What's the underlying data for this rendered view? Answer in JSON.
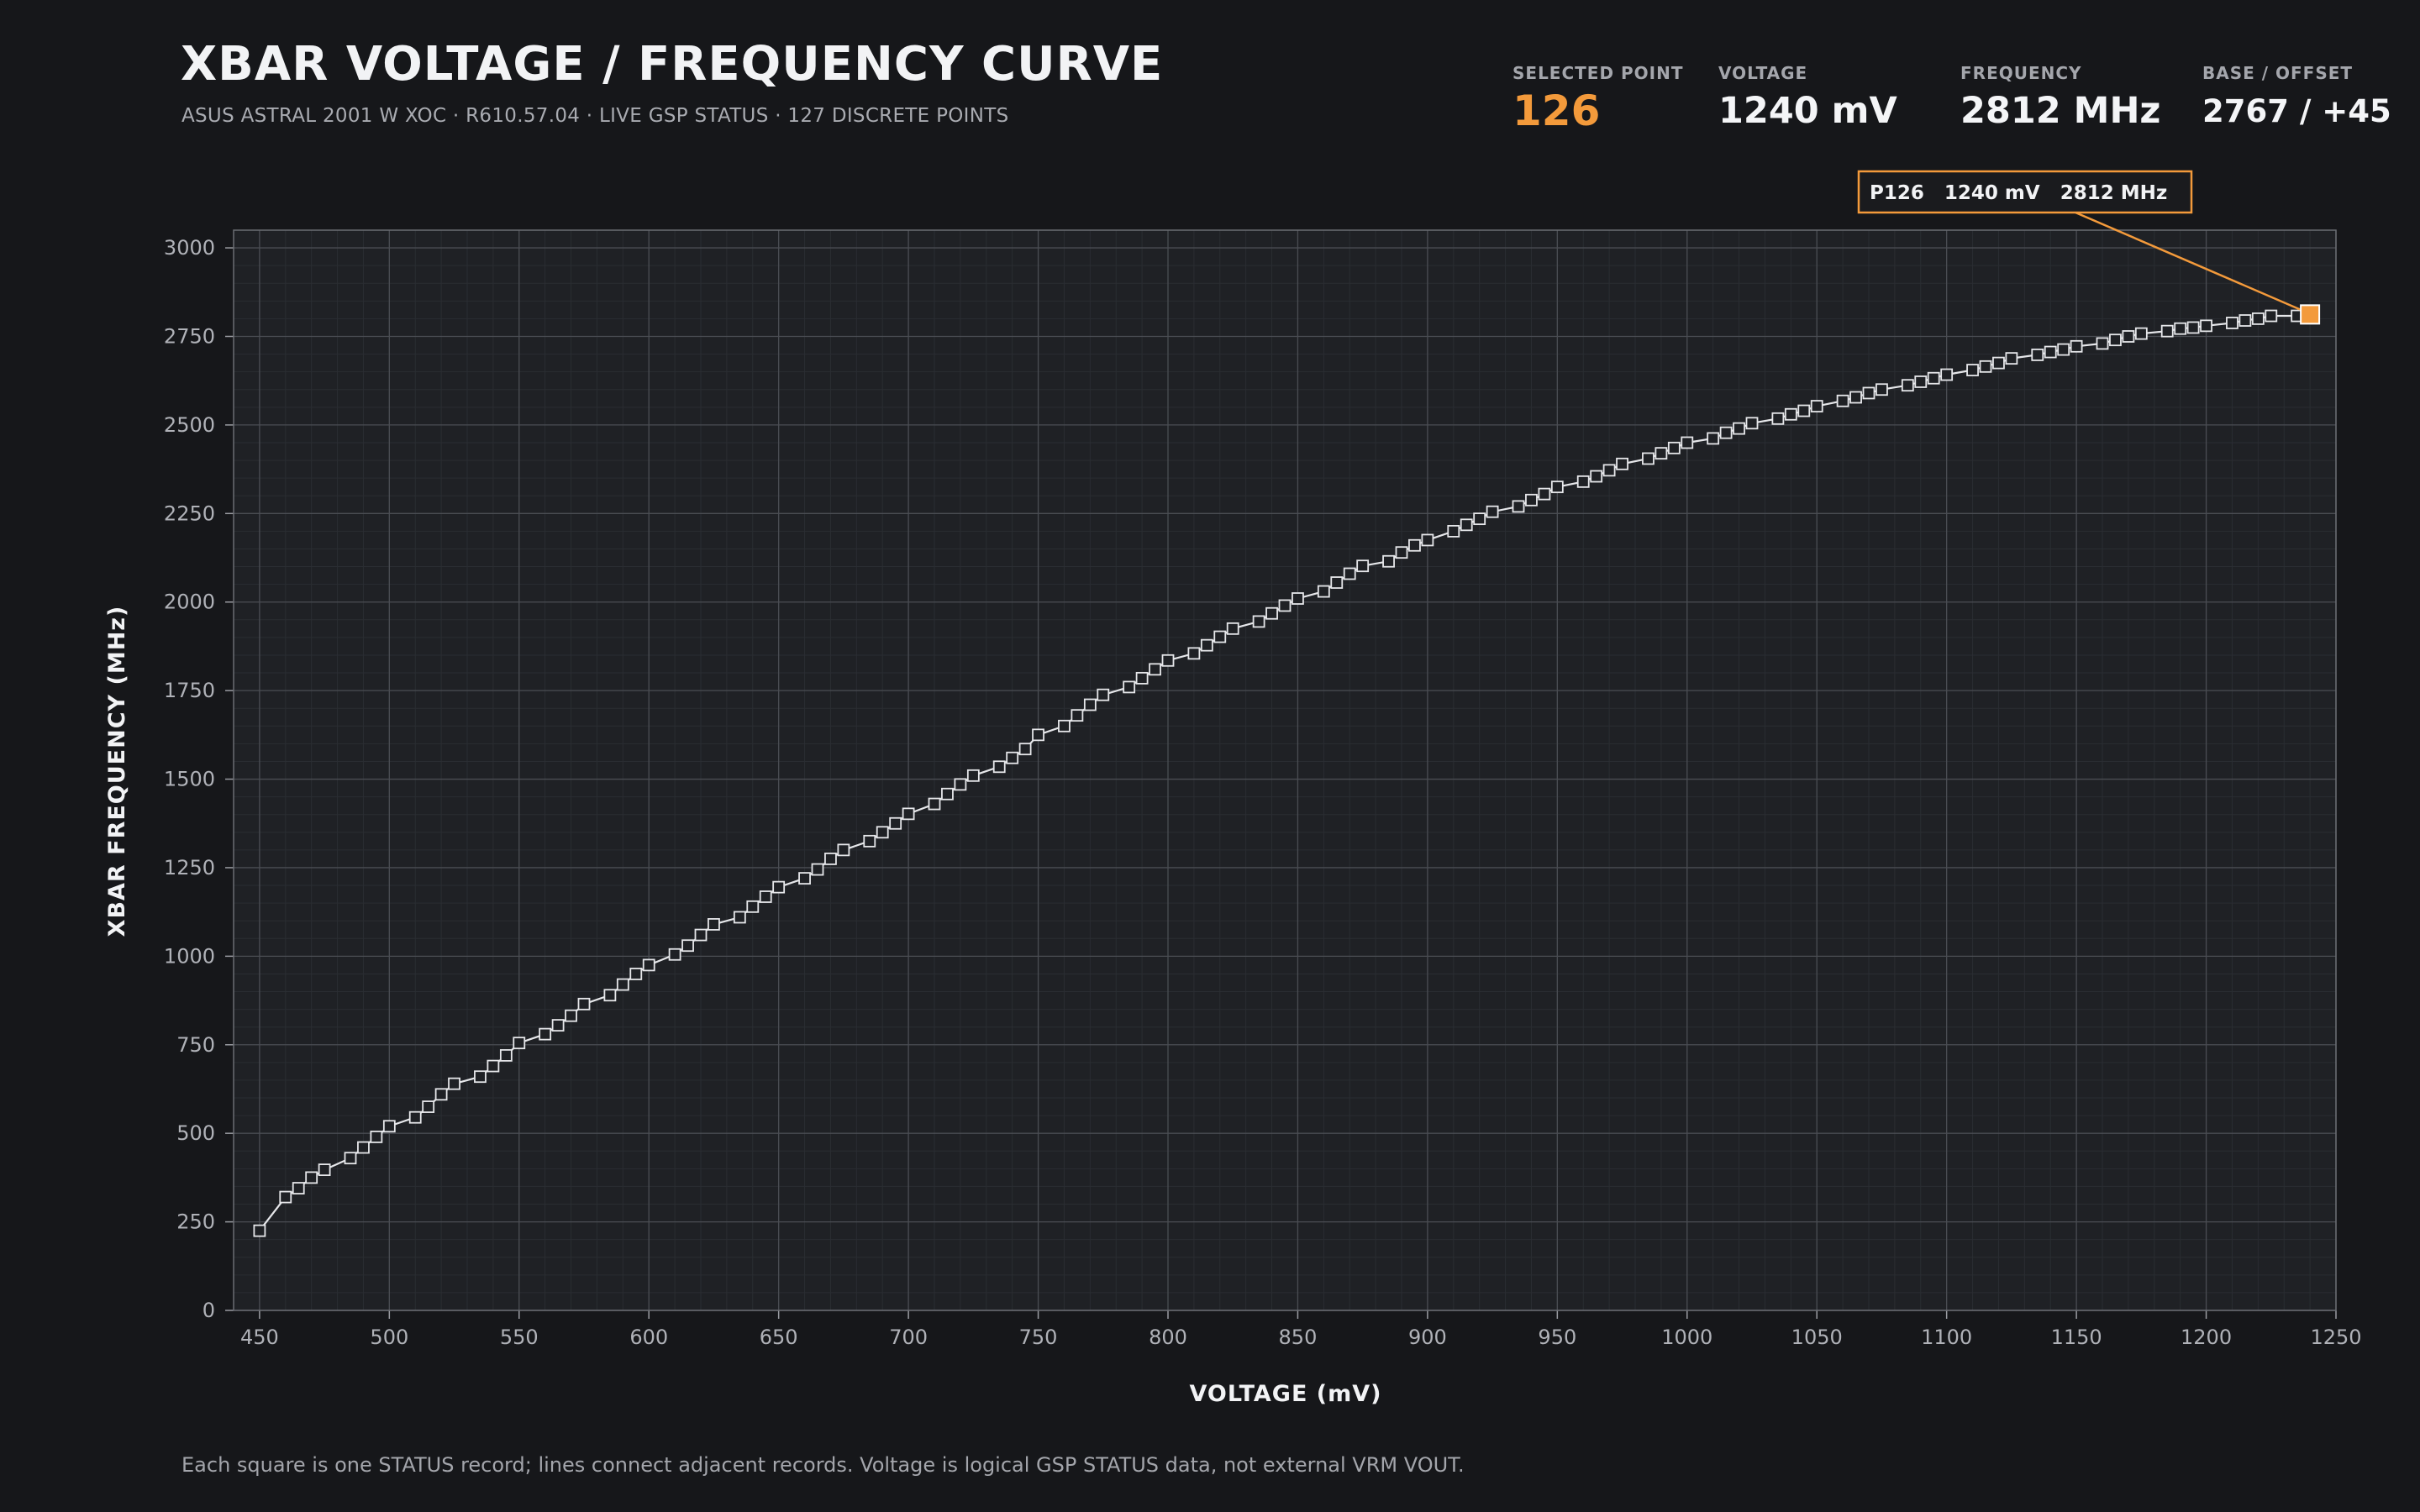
{
  "header": {
    "title": "XBAR VOLTAGE / FREQUENCY CURVE",
    "subtitle": "ASUS ASTRAL 2001 W XOC  ·  R610.57.04  ·  LIVE GSP STATUS  ·  127 DISCRETE POINTS"
  },
  "stats": {
    "selected_point": {
      "label": "SELECTED POINT",
      "value": "126"
    },
    "voltage": {
      "label": "VOLTAGE",
      "value": "1240 mV"
    },
    "frequency": {
      "label": "FREQUENCY",
      "value": "2812 MHz"
    },
    "base_offset": {
      "label": "BASE / OFFSET",
      "value": "2767 / +45"
    }
  },
  "footnote": "Each square is one STATUS record; lines connect adjacent records. Voltage is logical GSP STATUS data, not external VRM VOUT.",
  "colors": {
    "background": "#16171a",
    "plot_background": "#1f2125",
    "accent": "#f39a3b",
    "series": "#e6e7ea"
  },
  "chart_data": {
    "type": "line",
    "title": "",
    "xlabel": "VOLTAGE (mV)",
    "ylabel": "XBAR FREQUENCY (MHz)",
    "xlim": [
      440,
      1250
    ],
    "ylim": [
      0,
      3050
    ],
    "xticks": [
      450,
      500,
      550,
      600,
      650,
      700,
      750,
      800,
      850,
      900,
      950,
      1000,
      1050,
      1100,
      1150,
      1200,
      1250
    ],
    "yticks": [
      0,
      250,
      500,
      750,
      1000,
      1250,
      1500,
      1750,
      2000,
      2250,
      2500,
      2750,
      3000
    ],
    "grid": true,
    "markers": "square",
    "series": [
      {
        "x": [
          450,
          460,
          465,
          470,
          475,
          485,
          490,
          495,
          500,
          510,
          515,
          520,
          525,
          535,
          540,
          545,
          550,
          560,
          565,
          570,
          575,
          585,
          590,
          595,
          600,
          610,
          615,
          620,
          625,
          635,
          640,
          645,
          650,
          660,
          665,
          670,
          675,
          685,
          690,
          695,
          700,
          710,
          715,
          720,
          725,
          735,
          740,
          745,
          750,
          760,
          765,
          770,
          775,
          785,
          790,
          795,
          800,
          810,
          815,
          820,
          825,
          835,
          840,
          845,
          850,
          860,
          865,
          870,
          875,
          885,
          890,
          895,
          900,
          910,
          915,
          920,
          925,
          935,
          940,
          945,
          950,
          960,
          965,
          970,
          975,
          985,
          990,
          995,
          1000,
          1010,
          1015,
          1020,
          1025,
          1035,
          1040,
          1045,
          1050,
          1060,
          1065,
          1070,
          1075,
          1085,
          1090,
          1095,
          1100,
          1110,
          1115,
          1120,
          1125,
          1135,
          1140,
          1145,
          1150,
          1160,
          1165,
          1170,
          1175,
          1185,
          1190,
          1195,
          1200,
          1210,
          1215,
          1220,
          1225,
          1235,
          1240
        ],
        "y": [
          225,
          320,
          345,
          375,
          397,
          430,
          460,
          490,
          520,
          545,
          575,
          610,
          640,
          660,
          690,
          720,
          755,
          780,
          805,
          832,
          865,
          890,
          920,
          950,
          975,
          1005,
          1030,
          1060,
          1090,
          1110,
          1140,
          1168,
          1195,
          1220,
          1245,
          1275,
          1300,
          1325,
          1350,
          1375,
          1402,
          1430,
          1458,
          1485,
          1510,
          1535,
          1560,
          1585,
          1625,
          1650,
          1680,
          1710,
          1738,
          1760,
          1785,
          1810,
          1835,
          1855,
          1878,
          1902,
          1925,
          1945,
          1968,
          1990,
          2010,
          2030,
          2055,
          2080,
          2102,
          2115,
          2140,
          2160,
          2175,
          2200,
          2218,
          2235,
          2255,
          2270,
          2288,
          2305,
          2325,
          2340,
          2355,
          2372,
          2390,
          2405,
          2420,
          2435,
          2450,
          2462,
          2478,
          2490,
          2505,
          2518,
          2530,
          2540,
          2553,
          2568,
          2578,
          2590,
          2600,
          2612,
          2622,
          2632,
          2642,
          2655,
          2665,
          2675,
          2688,
          2698,
          2706,
          2713,
          2722,
          2730,
          2740,
          2750,
          2758,
          2765,
          2772,
          2775,
          2780,
          2788,
          2795,
          2800,
          2808,
          2808,
          2812
        ]
      }
    ],
    "selected": {
      "index": 126,
      "x": 1240,
      "y": 2812,
      "label": "P126   1240 mV   2812 MHz"
    }
  }
}
